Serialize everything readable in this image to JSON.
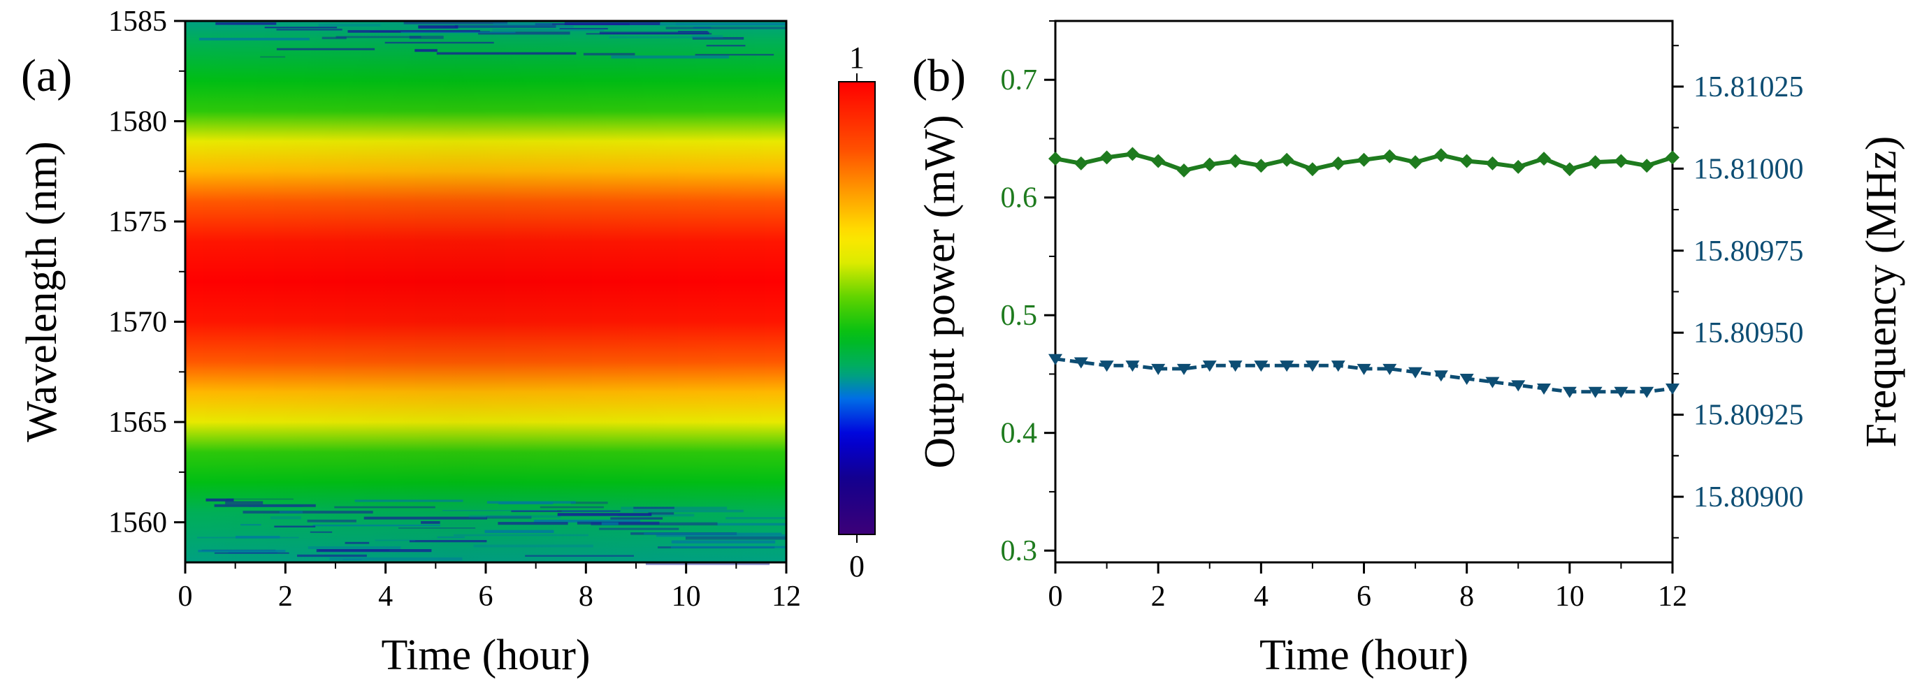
{
  "chart_data": [
    {
      "panel_label": "(a)",
      "type": "heatmap",
      "xlabel": "Time (hour)",
      "ylabel": "Wavelength (nm)",
      "xlim": [
        0,
        12
      ],
      "ylim": [
        1558,
        1585
      ],
      "x_ticks": [
        "0",
        "2",
        "4",
        "6",
        "8",
        "10",
        "12"
      ],
      "y_ticks": [
        "1560",
        "1565",
        "1570",
        "1575",
        "1580",
        "1585"
      ],
      "peak_wavelength": 1572,
      "intensity_profile": [
        [
          1558,
          0.35
        ],
        [
          1560.5,
          0.38
        ],
        [
          1562,
          0.44
        ],
        [
          1563.5,
          0.48
        ],
        [
          1565,
          0.62
        ],
        [
          1566.5,
          0.72
        ],
        [
          1568,
          0.84
        ],
        [
          1570,
          0.96
        ],
        [
          1572,
          1.0
        ],
        [
          1574,
          0.96
        ],
        [
          1576,
          0.84
        ],
        [
          1577.5,
          0.72
        ],
        [
          1579,
          0.62
        ],
        [
          1580.5,
          0.48
        ],
        [
          1582,
          0.44
        ],
        [
          1584,
          0.38
        ],
        [
          1585,
          0.35
        ]
      ],
      "colorbar": {
        "max_label": "1",
        "min_label": "0",
        "range": [
          0,
          1
        ]
      }
    },
    {
      "panel_label": "(b)",
      "type": "line",
      "xlabel": "Time (hour)",
      "ylabel_left": "Output power (mW)",
      "ylabel_right": "Frequency (MHz)",
      "xlim": [
        0,
        12
      ],
      "ylim_left": [
        0.29,
        0.75
      ],
      "ylim_right": [
        15.8088,
        15.81045
      ],
      "x_ticks": [
        "0",
        "2",
        "4",
        "6",
        "8",
        "10",
        "12"
      ],
      "y_ticks_left": [
        "0.3",
        "0.4",
        "0.5",
        "0.6",
        "0.7"
      ],
      "y_ticks_right": [
        "15.80900",
        "15.80925",
        "15.80950",
        "15.80975",
        "15.81000",
        "15.81025"
      ],
      "series": [
        {
          "name": "Output power",
          "axis": "left",
          "color": "#1e7b1e",
          "marker": "diamond",
          "x": [
            0,
            0.5,
            1,
            1.5,
            2,
            2.5,
            3,
            3.5,
            4,
            4.5,
            5,
            5.5,
            6,
            6.5,
            7,
            7.5,
            8,
            8.5,
            9,
            9.5,
            10,
            10.5,
            11,
            11.5,
            12
          ],
          "values": [
            0.633,
            0.629,
            0.634,
            0.637,
            0.631,
            0.623,
            0.628,
            0.631,
            0.627,
            0.632,
            0.624,
            0.629,
            0.632,
            0.635,
            0.63,
            0.636,
            0.631,
            0.629,
            0.626,
            0.633,
            0.624,
            0.63,
            0.631,
            0.627,
            0.634
          ]
        },
        {
          "name": "Frequency",
          "axis": "right",
          "color": "#0d4d73",
          "marker": "triangle-down",
          "x": [
            0,
            0.5,
            1,
            1.5,
            2,
            2.5,
            3,
            3.5,
            4,
            4.5,
            5,
            5.5,
            6,
            6.5,
            7,
            7.5,
            8,
            8.5,
            9,
            9.5,
            10,
            10.5,
            11,
            11.5,
            12
          ],
          "values": [
            15.80942,
            15.80941,
            15.8094,
            15.8094,
            15.80939,
            15.80939,
            15.8094,
            15.8094,
            15.8094,
            15.8094,
            15.8094,
            15.8094,
            15.80939,
            15.80939,
            15.80938,
            15.80937,
            15.80936,
            15.80935,
            15.80934,
            15.80933,
            15.80932,
            15.80932,
            15.80932,
            15.80932,
            15.80933
          ]
        }
      ]
    }
  ]
}
